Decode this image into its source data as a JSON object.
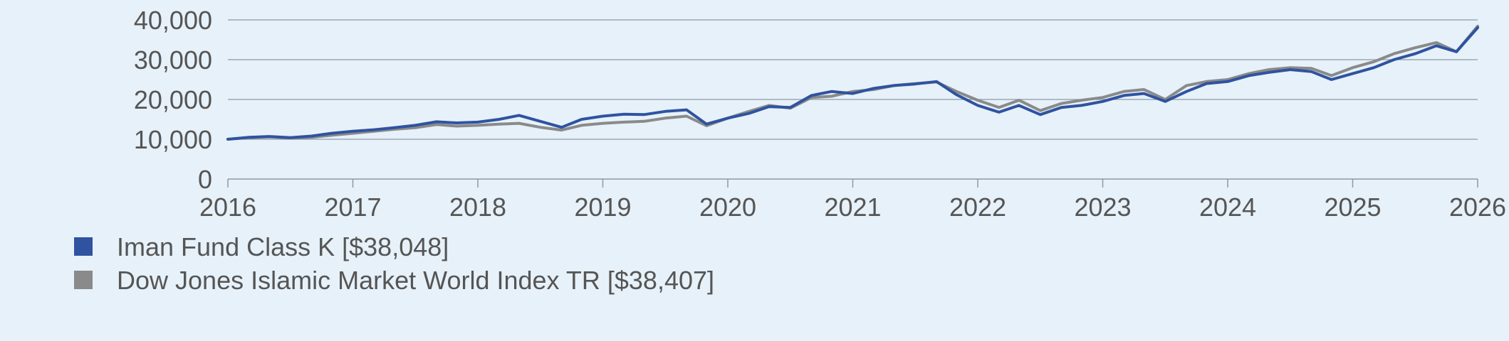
{
  "chart_data": {
    "type": "line",
    "title": "",
    "xlabel": "",
    "ylabel": "",
    "xlim": [
      2016,
      2026
    ],
    "ylim": [
      0,
      40000
    ],
    "x_ticks": [
      "2016",
      "2017",
      "2018",
      "2019",
      "2020",
      "2021",
      "2022",
      "2023",
      "2024",
      "2025",
      "2026"
    ],
    "y_ticks": [
      "0",
      "10,000",
      "20,000",
      "30,000",
      "40,000"
    ],
    "grid": "horizontal",
    "legend_position": "bottom-left",
    "series": [
      {
        "name": "Iman Fund Class K [$38,048]",
        "color": "#2f53a0",
        "values": [
          [
            2016.0,
            10000
          ],
          [
            2016.17,
            10500
          ],
          [
            2016.33,
            10700
          ],
          [
            2016.5,
            10400
          ],
          [
            2016.67,
            10800
          ],
          [
            2016.83,
            11500
          ],
          [
            2017.0,
            12000
          ],
          [
            2017.17,
            12400
          ],
          [
            2017.33,
            12900
          ],
          [
            2017.5,
            13500
          ],
          [
            2017.67,
            14400
          ],
          [
            2017.83,
            14100
          ],
          [
            2018.0,
            14300
          ],
          [
            2018.17,
            15000
          ],
          [
            2018.33,
            16000
          ],
          [
            2018.5,
            14500
          ],
          [
            2018.67,
            13000
          ],
          [
            2018.83,
            15000
          ],
          [
            2019.0,
            15800
          ],
          [
            2019.17,
            16300
          ],
          [
            2019.33,
            16200
          ],
          [
            2019.5,
            17000
          ],
          [
            2019.67,
            17400
          ],
          [
            2019.83,
            13800
          ],
          [
            2020.0,
            15300
          ],
          [
            2020.17,
            16500
          ],
          [
            2020.33,
            18200
          ],
          [
            2020.5,
            18000
          ],
          [
            2020.67,
            21000
          ],
          [
            2020.83,
            22000
          ],
          [
            2021.0,
            21500
          ],
          [
            2021.17,
            22800
          ],
          [
            2021.33,
            23500
          ],
          [
            2021.5,
            23900
          ],
          [
            2021.67,
            24500
          ],
          [
            2021.83,
            21200
          ],
          [
            2022.0,
            18500
          ],
          [
            2022.17,
            16800
          ],
          [
            2022.33,
            18500
          ],
          [
            2022.5,
            16200
          ],
          [
            2022.67,
            18000
          ],
          [
            2022.83,
            18500
          ],
          [
            2023.0,
            19500
          ],
          [
            2023.17,
            21000
          ],
          [
            2023.33,
            21500
          ],
          [
            2023.5,
            19500
          ],
          [
            2023.67,
            22000
          ],
          [
            2023.83,
            24000
          ],
          [
            2024.0,
            24500
          ],
          [
            2024.17,
            26000
          ],
          [
            2024.33,
            26800
          ],
          [
            2024.5,
            27500
          ],
          [
            2024.67,
            27000
          ],
          [
            2024.83,
            25000
          ],
          [
            2025.0,
            26500
          ],
          [
            2025.17,
            28000
          ],
          [
            2025.33,
            30000
          ],
          [
            2025.5,
            31500
          ],
          [
            2025.67,
            33500
          ],
          [
            2025.83,
            32000
          ],
          [
            2026.0,
            38048
          ]
        ]
      },
      {
        "name": "Dow Jones Islamic Market World Index TR [$38,407]",
        "color": "#8a8a8a",
        "values": [
          [
            2016.0,
            10000
          ],
          [
            2016.17,
            10400
          ],
          [
            2016.33,
            10600
          ],
          [
            2016.5,
            10300
          ],
          [
            2016.67,
            10500
          ],
          [
            2016.83,
            11000
          ],
          [
            2017.0,
            11500
          ],
          [
            2017.17,
            12000
          ],
          [
            2017.33,
            12500
          ],
          [
            2017.5,
            12900
          ],
          [
            2017.67,
            13700
          ],
          [
            2017.83,
            13300
          ],
          [
            2018.0,
            13500
          ],
          [
            2018.17,
            13800
          ],
          [
            2018.33,
            14000
          ],
          [
            2018.5,
            13000
          ],
          [
            2018.67,
            12300
          ],
          [
            2018.83,
            13500
          ],
          [
            2019.0,
            14000
          ],
          [
            2019.17,
            14300
          ],
          [
            2019.33,
            14500
          ],
          [
            2019.5,
            15300
          ],
          [
            2019.67,
            15800
          ],
          [
            2019.83,
            13400
          ],
          [
            2020.0,
            15300
          ],
          [
            2020.17,
            17000
          ],
          [
            2020.33,
            18500
          ],
          [
            2020.5,
            17800
          ],
          [
            2020.67,
            20500
          ],
          [
            2020.83,
            20800
          ],
          [
            2021.0,
            22000
          ],
          [
            2021.17,
            22500
          ],
          [
            2021.33,
            23500
          ],
          [
            2021.5,
            24000
          ],
          [
            2021.67,
            24400
          ],
          [
            2021.83,
            22000
          ],
          [
            2022.0,
            19800
          ],
          [
            2022.17,
            18000
          ],
          [
            2022.33,
            19800
          ],
          [
            2022.5,
            17200
          ],
          [
            2022.67,
            19000
          ],
          [
            2022.83,
            19800
          ],
          [
            2023.0,
            20500
          ],
          [
            2023.17,
            22000
          ],
          [
            2023.33,
            22500
          ],
          [
            2023.5,
            20000
          ],
          [
            2023.67,
            23500
          ],
          [
            2023.83,
            24500
          ],
          [
            2024.0,
            25000
          ],
          [
            2024.17,
            26500
          ],
          [
            2024.33,
            27500
          ],
          [
            2024.5,
            28000
          ],
          [
            2024.67,
            27800
          ],
          [
            2024.83,
            26000
          ],
          [
            2025.0,
            28000
          ],
          [
            2025.17,
            29500
          ],
          [
            2025.33,
            31500
          ],
          [
            2025.5,
            33000
          ],
          [
            2025.67,
            34300
          ],
          [
            2025.83,
            32000
          ],
          [
            2026.0,
            38407
          ]
        ]
      }
    ]
  }
}
